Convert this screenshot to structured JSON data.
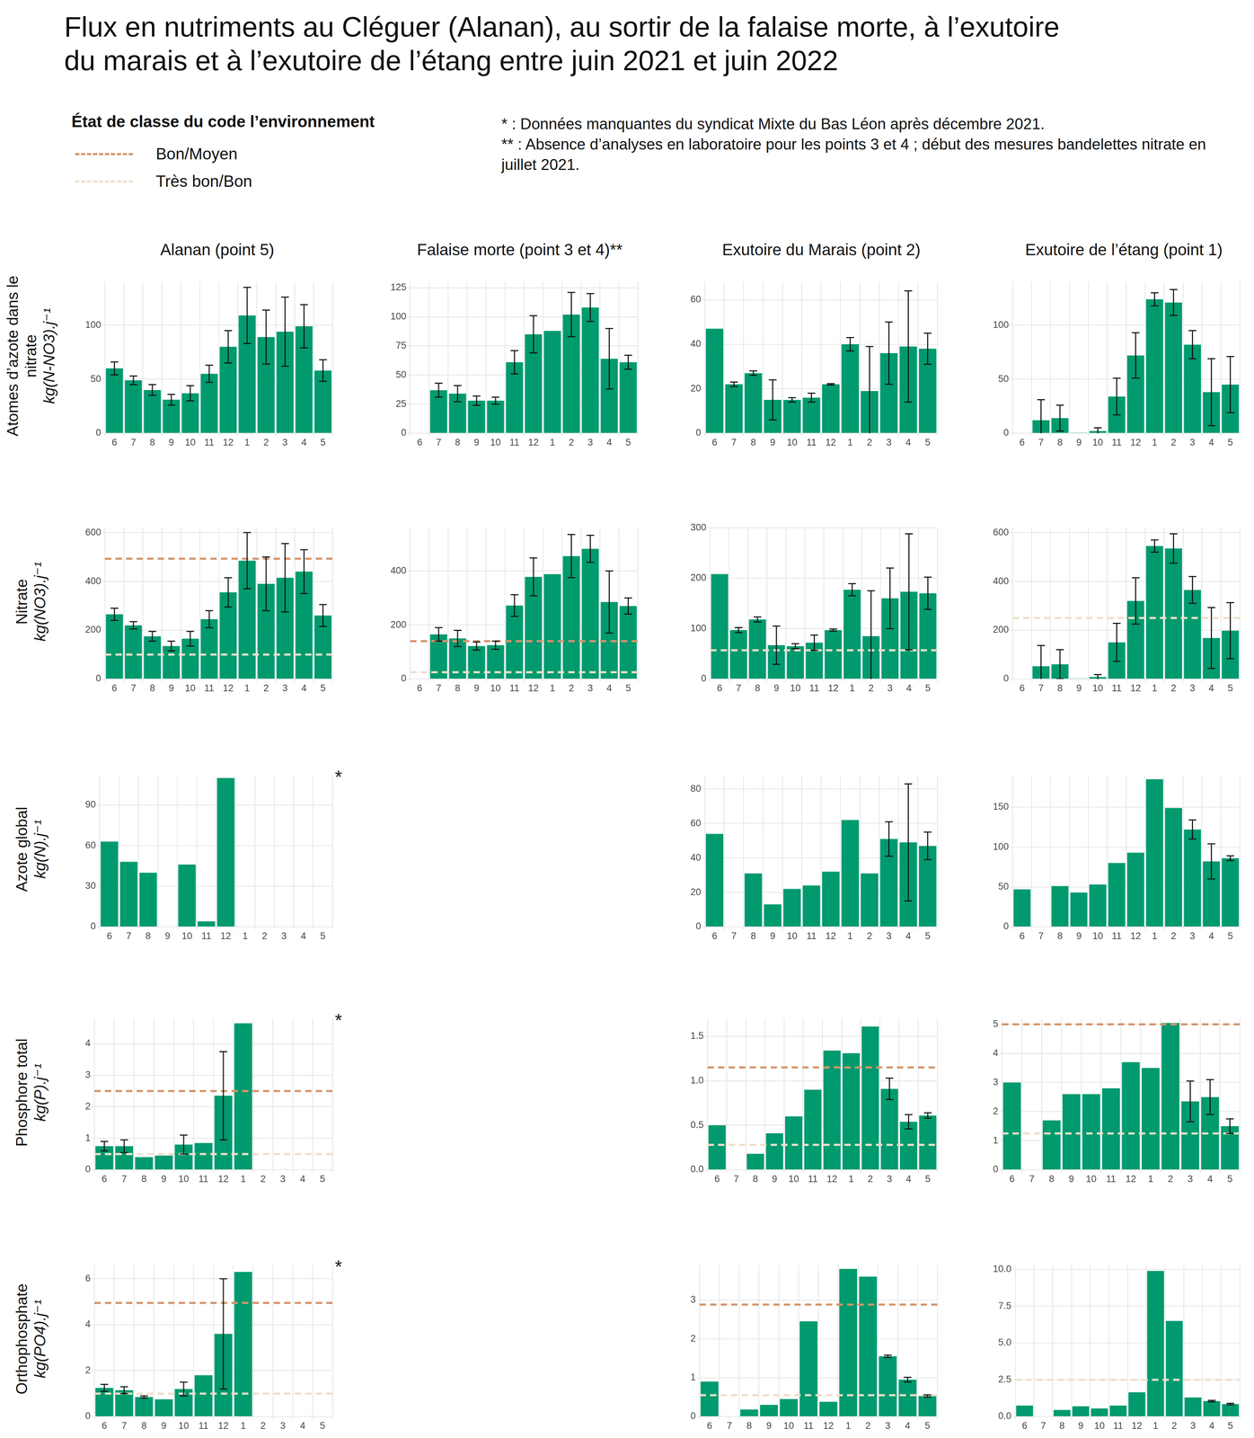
{
  "title": [
    "Flux en nutriments au Cléguer (Alanan),  au sortir de la falaise morte, à l’exutoire",
    "du marais et à l’exutoire de l’étang entre juin 2021 et juin 2022"
  ],
  "legend": {
    "title": "État de classe du code l’environnement",
    "items": [
      {
        "label": "Bon/Moyen",
        "color": "#d4956b",
        "line_style": "dashed"
      },
      {
        "label": "Très bon/Bon",
        "color": "#efdfc9",
        "line_style": "dashed"
      }
    ]
  },
  "notes": [
    "* : Données manquantes du syndicat Mixte du Bas Léon après décembre 2021.",
    "** : Absence d’analyses en laboratoire pour les points 3 et 4 ; début des mesures bandelettes nitrate en juillet 2021."
  ],
  "columns": [
    "Alanan (point 5)",
    "Falaise morte (point 3 et 4)**",
    "Exutoire du Marais (point 2)",
    "Exutoire de l’étang (point 1)"
  ],
  "rows": [
    {
      "label": "Atomes d’azote dans le nitrate",
      "unit": "kg(N-NO3).j⁻¹"
    },
    {
      "label": "Nitrate",
      "unit": "kg(NO3).j⁻¹"
    },
    {
      "label": "Azote global",
      "unit": "kg(N).j⁻¹"
    },
    {
      "label": "Phosphore total",
      "unit": "kg(P).j⁻¹"
    },
    {
      "label": "Orthophosphate",
      "unit": "kg(PO4).j⁻¹"
    }
  ],
  "chart_data": [
    {
      "type": "bar",
      "categories": [
        "6",
        "7",
        "8",
        "9",
        "10",
        "11",
        "12",
        "1",
        "2",
        "3",
        "4",
        "5"
      ],
      "values": [
        60,
        49,
        40,
        31,
        37,
        55,
        80,
        109,
        89,
        94,
        99,
        58
      ],
      "errors": [
        6,
        4,
        5,
        5,
        7,
        8,
        15,
        26,
        25,
        32,
        20,
        10
      ],
      "color": "#009a6e",
      "ylim": [
        0,
        140
      ],
      "yticks": [
        0,
        50,
        100
      ],
      "grid": true,
      "reference_lines": []
    },
    {
      "type": "bar",
      "categories": [
        "6",
        "7",
        "8",
        "9",
        "10",
        "11",
        "12",
        "1",
        "2",
        "3",
        "4",
        "5"
      ],
      "values": [
        null,
        37,
        34,
        28,
        28,
        61,
        85,
        88,
        102,
        108,
        64,
        61
      ],
      "errors": [
        null,
        6,
        7,
        4,
        3,
        10,
        16,
        null,
        19,
        12,
        26,
        6
      ],
      "color": "#009a6e",
      "ylim": [
        0,
        130
      ],
      "yticks": [
        0,
        25,
        50,
        75,
        100,
        125
      ],
      "grid": true,
      "reference_lines": []
    },
    {
      "type": "bar",
      "categories": [
        "6",
        "7",
        "8",
        "9",
        "10",
        "11",
        "12",
        "1",
        "2",
        "3",
        "4",
        "5"
      ],
      "values": [
        47,
        22,
        27,
        15,
        15,
        16,
        22,
        40,
        19,
        36,
        39,
        38
      ],
      "errors": [
        null,
        1,
        1,
        9,
        1,
        2,
        0.3,
        3,
        20,
        14,
        25,
        7
      ],
      "color": "#009a6e",
      "ylim": [
        0,
        68
      ],
      "yticks": [
        0,
        20,
        40,
        60
      ],
      "grid": true,
      "reference_lines": []
    },
    {
      "type": "bar",
      "categories": [
        "6",
        "7",
        "8",
        "9",
        "10",
        "11",
        "12",
        "1",
        "2",
        "3",
        "4",
        "5"
      ],
      "values": [
        0,
        12,
        14,
        0.5,
        2,
        34,
        72,
        124,
        121,
        82,
        38,
        45
      ],
      "errors": [
        null,
        19,
        12,
        null,
        3,
        17,
        21,
        6,
        12,
        13,
        31,
        26
      ],
      "color": "#009a6e",
      "ylim": [
        0,
        140
      ],
      "yticks": [
        0,
        50,
        100
      ],
      "grid": true,
      "reference_lines": []
    },
    {
      "type": "bar",
      "categories": [
        "6",
        "7",
        "8",
        "9",
        "10",
        "11",
        "12",
        "1",
        "2",
        "3",
        "4",
        "5"
      ],
      "values": [
        265,
        220,
        175,
        135,
        165,
        245,
        355,
        485,
        390,
        415,
        440,
        260
      ],
      "errors": [
        25,
        15,
        20,
        20,
        30,
        35,
        60,
        115,
        110,
        140,
        90,
        45
      ],
      "color": "#009a6e",
      "ylim": [
        0,
        620
      ],
      "yticks": [
        0,
        200,
        400,
        600
      ],
      "grid": true,
      "reference_lines": [
        {
          "name": "Bon/Moyen",
          "value": 493
        },
        {
          "name": "Très bon/Bon",
          "value": 100
        }
      ]
    },
    {
      "type": "bar",
      "categories": [
        "6",
        "7",
        "8",
        "9",
        "10",
        "11",
        "12",
        "1",
        "2",
        "3",
        "4",
        "5"
      ],
      "values": [
        null,
        165,
        150,
        122,
        125,
        272,
        378,
        388,
        455,
        482,
        285,
        270
      ],
      "errors": [
        null,
        25,
        30,
        15,
        15,
        40,
        70,
        null,
        80,
        50,
        115,
        30
      ],
      "color": "#009a6e",
      "ylim": [
        0,
        560
      ],
      "yticks": [
        0,
        200,
        400
      ],
      "grid": true,
      "reference_lines": [
        {
          "name": "Bon/Moyen",
          "value": 140
        },
        {
          "name": "Très bon/Bon",
          "value": 25
        }
      ]
    },
    {
      "type": "bar",
      "categories": [
        "6",
        "7",
        "8",
        "9",
        "10",
        "11",
        "12",
        "1",
        "2",
        "3",
        "4",
        "5"
      ],
      "values": [
        208,
        97,
        118,
        67,
        65,
        72,
        97,
        177,
        85,
        160,
        173,
        170
      ],
      "errors": [
        null,
        5,
        5,
        38,
        5,
        15,
        2,
        12,
        90,
        60,
        115,
        32
      ],
      "color": "#009a6e",
      "ylim": [
        0,
        300
      ],
      "yticks": [
        0,
        100,
        200,
        300
      ],
      "grid": true,
      "reference_lines": [
        {
          "name": "Très bon/Bon",
          "value": 57
        }
      ]
    },
    {
      "type": "bar",
      "categories": [
        "6",
        "7",
        "8",
        "9",
        "10",
        "11",
        "12",
        "1",
        "2",
        "3",
        "4",
        "5"
      ],
      "values": [
        0,
        52,
        60,
        2,
        8,
        150,
        320,
        545,
        535,
        365,
        168,
        198
      ],
      "errors": [
        null,
        85,
        60,
        null,
        10,
        78,
        95,
        25,
        60,
        55,
        125,
        115
      ],
      "color": "#009a6e",
      "ylim": [
        0,
        620
      ],
      "yticks": [
        0,
        200,
        400,
        600
      ],
      "grid": true,
      "reference_lines": [
        {
          "name": "Très bon/Bon",
          "value": 250
        }
      ]
    },
    {
      "type": "bar",
      "categories": [
        "6",
        "7",
        "8",
        "9",
        "10",
        "11",
        "12",
        "1",
        "2",
        "3",
        "4",
        "5"
      ],
      "values": [
        63,
        48,
        40,
        null,
        46,
        4,
        110,
        null,
        null,
        null,
        null,
        null
      ],
      "errors": [
        null,
        null,
        null,
        null,
        null,
        null,
        null,
        null,
        null,
        null,
        null,
        null
      ],
      "color": "#009a6e",
      "ylim": [
        0,
        112
      ],
      "yticks": [
        0,
        30,
        60,
        90
      ],
      "grid": true,
      "reference_lines": [],
      "annotation": "*"
    },
    null,
    {
      "type": "bar",
      "categories": [
        "6",
        "7",
        "8",
        "9",
        "10",
        "11",
        "12",
        "1",
        "2",
        "3",
        "4",
        "5"
      ],
      "values": [
        54,
        null,
        31,
        13,
        22,
        24,
        32,
        62,
        31,
        51,
        49,
        47
      ],
      "errors": [
        null,
        null,
        null,
        null,
        null,
        null,
        null,
        null,
        null,
        10,
        34,
        8
      ],
      "color": "#009a6e",
      "ylim": [
        0,
        88
      ],
      "yticks": [
        0,
        20,
        40,
        60,
        80
      ],
      "grid": true,
      "reference_lines": []
    },
    {
      "type": "bar",
      "categories": [
        "6",
        "7",
        "8",
        "9",
        "10",
        "11",
        "12",
        "1",
        "2",
        "3",
        "4",
        "5"
      ],
      "values": [
        47,
        null,
        51,
        43,
        53,
        80,
        93,
        185,
        149,
        122,
        82,
        86
      ],
      "errors": [
        null,
        null,
        null,
        null,
        null,
        null,
        null,
        null,
        null,
        12,
        22,
        3
      ],
      "color": "#009a6e",
      "ylim": [
        0,
        190
      ],
      "yticks": [
        0,
        50,
        100,
        150
      ],
      "grid": true,
      "reference_lines": []
    },
    {
      "type": "bar",
      "categories": [
        "6",
        "7",
        "8",
        "9",
        "10",
        "11",
        "12",
        "1",
        "2",
        "3",
        "4",
        "5"
      ],
      "values": [
        0.75,
        0.75,
        0.4,
        0.45,
        0.8,
        0.85,
        2.35,
        4.65,
        null,
        null,
        null,
        null
      ],
      "errors": [
        0.15,
        0.2,
        null,
        null,
        0.3,
        null,
        1.4,
        null,
        null,
        null,
        null,
        null
      ],
      "color": "#009a6e",
      "ylim": [
        0,
        4.8
      ],
      "yticks": [
        0,
        1,
        2,
        3,
        4
      ],
      "grid": true,
      "reference_lines": [
        {
          "name": "Bon/Moyen",
          "value": 2.5
        },
        {
          "name": "Très bon/Bon",
          "value": 0.5
        }
      ],
      "annotation": "*"
    },
    null,
    {
      "type": "bar",
      "categories": [
        "6",
        "7",
        "8",
        "9",
        "10",
        "11",
        "12",
        "1",
        "2",
        "3",
        "4",
        "5"
      ],
      "values": [
        0.5,
        null,
        0.18,
        0.41,
        0.6,
        0.9,
        1.34,
        1.31,
        1.61,
        0.91,
        0.54,
        0.61
      ],
      "errors": [
        null,
        null,
        null,
        null,
        null,
        null,
        null,
        null,
        null,
        0.12,
        0.08,
        0.03
      ],
      "color": "#009a6e",
      "ylim": [
        0,
        1.7
      ],
      "yticks": [
        {
          "value": 0,
          "label": "0.0"
        },
        {
          "value": 0.5,
          "label": "0.5"
        },
        {
          "value": 1,
          "label": "1.0"
        },
        {
          "value": 1.5,
          "label": "1.5"
        }
      ],
      "grid": true,
      "reference_lines": [
        {
          "name": "Bon/Moyen",
          "value": 1.15
        },
        {
          "name": "Très bon/Bon",
          "value": 0.28
        }
      ]
    },
    {
      "type": "bar",
      "categories": [
        "6",
        "7",
        "8",
        "9",
        "10",
        "11",
        "12",
        "1",
        "2",
        "3",
        "4",
        "5"
      ],
      "values": [
        3.0,
        0,
        1.7,
        2.6,
        2.6,
        2.8,
        3.7,
        3.5,
        5.05,
        2.35,
        2.5,
        1.5
      ],
      "errors": [
        null,
        null,
        null,
        null,
        null,
        null,
        null,
        null,
        null,
        0.7,
        0.6,
        0.25
      ],
      "color": "#009a6e",
      "ylim": [
        0,
        5.2
      ],
      "yticks": [
        0,
        1,
        2,
        3,
        4,
        5
      ],
      "grid": true,
      "reference_lines": [
        {
          "name": "Bon/Moyen",
          "value": 5.0
        },
        {
          "name": "Très bon/Bon",
          "value": 1.25
        }
      ]
    },
    {
      "type": "bar",
      "categories": [
        "6",
        "7",
        "8",
        "9",
        "10",
        "11",
        "12",
        "1",
        "2",
        "3",
        "4",
        "5"
      ],
      "values": [
        1.25,
        1.15,
        0.85,
        0.75,
        1.2,
        1.8,
        3.6,
        6.3,
        null,
        null,
        null,
        null
      ],
      "errors": [
        0.15,
        0.15,
        0.05,
        null,
        0.3,
        null,
        2.4,
        null,
        null,
        null,
        null,
        null
      ],
      "color": "#009a6e",
      "ylim": [
        0,
        6.6
      ],
      "yticks": [
        0,
        2,
        4,
        6
      ],
      "grid": true,
      "reference_lines": [
        {
          "name": "Bon/Moyen",
          "value": 4.95
        },
        {
          "name": "Très bon/Bon",
          "value": 1.0
        }
      ],
      "annotation": "*"
    },
    null,
    {
      "type": "bar",
      "categories": [
        "6",
        "7",
        "8",
        "9",
        "10",
        "11",
        "12",
        "1",
        "2",
        "3",
        "4",
        "5"
      ],
      "values": [
        0.9,
        null,
        0.18,
        0.3,
        0.45,
        2.45,
        0.38,
        3.8,
        3.6,
        1.55,
        0.95,
        0.53
      ],
      "errors": [
        null,
        null,
        null,
        null,
        null,
        null,
        null,
        null,
        null,
        0.03,
        0.06,
        0.03
      ],
      "color": "#009a6e",
      "ylim": [
        0,
        3.9
      ],
      "yticks": [
        0,
        1,
        2,
        3
      ],
      "grid": true,
      "reference_lines": [
        {
          "name": "Bon/Moyen",
          "value": 2.88
        },
        {
          "name": "Très bon/Bon",
          "value": 0.55
        }
      ]
    },
    {
      "type": "bar",
      "categories": [
        "6",
        "7",
        "8",
        "9",
        "10",
        "11",
        "12",
        "1",
        "2",
        "3",
        "4",
        "5"
      ],
      "values": [
        0.75,
        null,
        0.45,
        0.7,
        0.55,
        0.75,
        1.65,
        9.9,
        6.5,
        1.3,
        1.05,
        0.85
      ],
      "errors": [
        null,
        null,
        null,
        null,
        null,
        null,
        null,
        null,
        null,
        null,
        0.05,
        0.05
      ],
      "color": "#009a6e",
      "ylim": [
        0,
        10.3
      ],
      "yticks": [
        {
          "value": 0,
          "label": "0.0"
        },
        {
          "value": 2.5,
          "label": "2.5"
        },
        {
          "value": 5,
          "label": "5.0"
        },
        {
          "value": 7.5,
          "label": "7.5"
        },
        {
          "value": 10,
          "label": "10.0"
        }
      ],
      "grid": true,
      "reference_lines": [
        {
          "name": "Très bon/Bon",
          "value": 2.5
        }
      ]
    }
  ]
}
